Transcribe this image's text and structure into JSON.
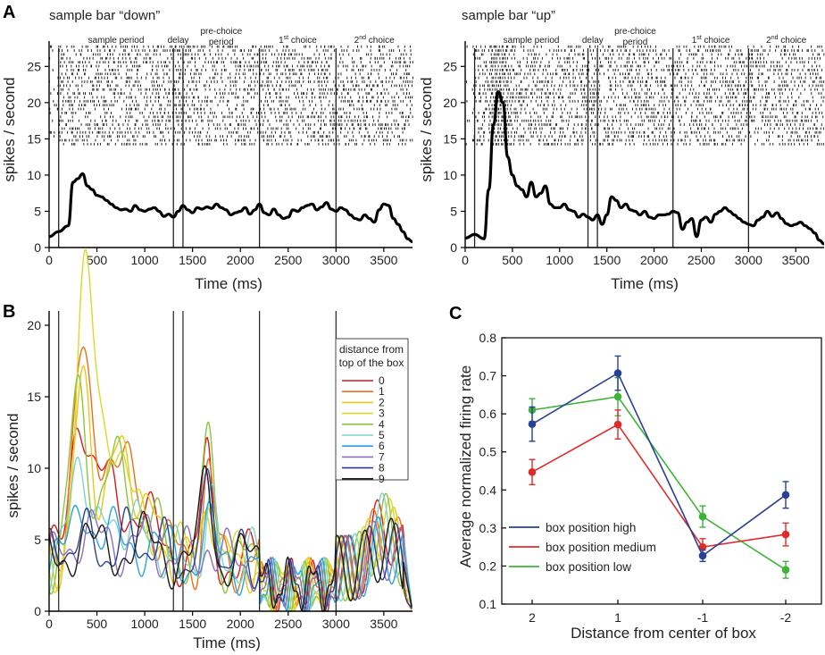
{
  "chart_data": [
    {
      "id": "A-left",
      "panel": "A",
      "type": "line",
      "title": "sample bar “down”",
      "xlabel": "Time (ms)",
      "ylabel": "spikes / second",
      "xlim": [
        0,
        3800
      ],
      "ylim": [
        0,
        28
      ],
      "xticks": [
        "0",
        "500",
        "1000",
        "1500",
        "2000",
        "2500",
        "3000",
        "3500"
      ],
      "xtick_values": [
        0,
        500,
        1000,
        1500,
        2000,
        2500,
        3000,
        3500
      ],
      "yticks": [
        "0",
        "5",
        "10",
        "15",
        "20",
        "25"
      ],
      "ytick_values": [
        0,
        5,
        10,
        15,
        20,
        25
      ],
      "epoch_lines": [
        100,
        1300,
        1400,
        2200,
        3000
      ],
      "epoch_labels": [
        {
          "text": "sample period",
          "t": 700,
          "lines": [
            "sample period"
          ]
        },
        {
          "text": "delay",
          "t": 1350,
          "lines": [
            "delay"
          ]
        },
        {
          "text": "pre-choice period",
          "t": 1800,
          "lines": [
            "pre-choice",
            "period"
          ]
        },
        {
          "text": "1st choice",
          "t": 2600,
          "base": "1",
          "sup": "st",
          "rest": " choice"
        },
        {
          "text": "2nd choice",
          "t": 3400,
          "base": "2",
          "sup": "nd",
          "rest": " choice"
        }
      ],
      "raster": {
        "y_range": [
          14,
          28
        ],
        "t_range": [
          0,
          3800
        ],
        "density": "dense"
      },
      "x": [
        0,
        100,
        200,
        250,
        300,
        350,
        400,
        450,
        500,
        550,
        600,
        650,
        700,
        750,
        800,
        850,
        900,
        950,
        1000,
        1050,
        1100,
        1150,
        1200,
        1250,
        1300,
        1350,
        1400,
        1450,
        1500,
        1550,
        1600,
        1650,
        1700,
        1750,
        1800,
        1850,
        1900,
        1950,
        2000,
        2050,
        2100,
        2150,
        2200,
        2250,
        2300,
        2350,
        2400,
        2450,
        2500,
        2550,
        2600,
        2650,
        2700,
        2750,
        2800,
        2850,
        2900,
        2950,
        3000,
        3050,
        3100,
        3150,
        3200,
        3250,
        3300,
        3350,
        3400,
        3450,
        3500,
        3550,
        3600,
        3650,
        3700,
        3750,
        3800
      ],
      "series": [
        {
          "name": "firing rate",
          "color": "#000000",
          "values": [
            1.5,
            2.2,
            3.0,
            9.0,
            9.5,
            10.2,
            8.5,
            8.0,
            7.2,
            7.0,
            6.5,
            6.0,
            5.5,
            5.2,
            5.3,
            5.0,
            5.8,
            5.2,
            5.0,
            5.3,
            5.5,
            5.0,
            4.3,
            4.6,
            4.2,
            5.0,
            5.8,
            5.2,
            4.8,
            5.5,
            5.3,
            5.6,
            5.4,
            6.0,
            5.5,
            5.2,
            4.5,
            4.8,
            5.0,
            5.5,
            4.6,
            5.2,
            6.0,
            4.8,
            4.5,
            5.3,
            4.5,
            4.0,
            4.2,
            5.2,
            5.0,
            5.5,
            5.8,
            6.0,
            5.2,
            5.6,
            6.2,
            5.3,
            5.0,
            5.5,
            5.2,
            4.5,
            4.0,
            3.8,
            4.5,
            4.0,
            3.5,
            5.2,
            6.0,
            5.8,
            4.0,
            3.2,
            2.2,
            1.2,
            0.8
          ]
        }
      ]
    },
    {
      "id": "A-right",
      "panel": "A",
      "type": "line",
      "title": "sample bar “up”",
      "xlabel": "Time (ms)",
      "ylabel": "spikes / second",
      "xlim": [
        0,
        3800
      ],
      "ylim": [
        0,
        28
      ],
      "xticks": [
        "0",
        "500",
        "1000",
        "1500",
        "2000",
        "2500",
        "3000",
        "3500"
      ],
      "xtick_values": [
        0,
        500,
        1000,
        1500,
        2000,
        2500,
        3000,
        3500
      ],
      "yticks": [
        "0",
        "5",
        "10",
        "15",
        "20",
        "25"
      ],
      "ytick_values": [
        0,
        5,
        10,
        15,
        20,
        25
      ],
      "epoch_lines": [
        100,
        1300,
        1400,
        2200,
        3000
      ],
      "epoch_labels": [
        {
          "text": "sample period",
          "t": 700,
          "lines": [
            "sample period"
          ]
        },
        {
          "text": "delay",
          "t": 1350,
          "lines": [
            "delay"
          ]
        },
        {
          "text": "pre-choice period",
          "t": 1800,
          "lines": [
            "pre-choice",
            "period"
          ]
        },
        {
          "text": "1st choice",
          "t": 2600,
          "base": "1",
          "sup": "st",
          "rest": " choice"
        },
        {
          "text": "2nd choice",
          "t": 3400,
          "base": "2",
          "sup": "nd",
          "rest": " choice"
        }
      ],
      "raster": {
        "y_range": [
          14,
          28
        ],
        "t_range": [
          0,
          3800
        ],
        "density": "dense",
        "burst": [
          250,
          450
        ]
      },
      "x": [
        0,
        100,
        200,
        250,
        300,
        350,
        400,
        450,
        500,
        550,
        600,
        650,
        700,
        750,
        800,
        850,
        900,
        950,
        1000,
        1050,
        1100,
        1150,
        1200,
        1250,
        1300,
        1350,
        1400,
        1450,
        1500,
        1550,
        1600,
        1650,
        1700,
        1750,
        1800,
        1850,
        1900,
        1950,
        2000,
        2050,
        2100,
        2150,
        2200,
        2250,
        2300,
        2350,
        2400,
        2450,
        2500,
        2550,
        2600,
        2650,
        2700,
        2750,
        2800,
        2850,
        2900,
        2950,
        3000,
        3050,
        3100,
        3150,
        3200,
        3250,
        3300,
        3350,
        3400,
        3450,
        3500,
        3550,
        3600,
        3650,
        3700,
        3750,
        3800
      ],
      "series": [
        {
          "name": "firing rate",
          "color": "#000000",
          "values": [
            1.3,
            1.8,
            1.2,
            8.0,
            17.0,
            21.5,
            20.0,
            12.5,
            10.0,
            8.5,
            8.0,
            7.0,
            9.0,
            7.0,
            7.5,
            8.5,
            6.0,
            5.5,
            5.5,
            6.0,
            5.2,
            5.0,
            4.2,
            4.6,
            4.2,
            3.8,
            4.5,
            3.2,
            4.5,
            7.0,
            6.5,
            5.5,
            6.0,
            5.2,
            5.0,
            4.5,
            5.0,
            4.2,
            4.0,
            4.5,
            4.5,
            4.6,
            5.0,
            4.8,
            2.5,
            3.5,
            4.0,
            1.5,
            3.8,
            4.2,
            3.5,
            4.6,
            5.0,
            5.5,
            5.0,
            4.5,
            4.0,
            3.5,
            3.2,
            3.0,
            3.8,
            4.2,
            5.0,
            4.3,
            4.8,
            4.0,
            3.3,
            3.0,
            3.2,
            3.5,
            3.0,
            2.6,
            2.0,
            1.0,
            0.5
          ]
        }
      ]
    },
    {
      "id": "B",
      "panel": "B",
      "type": "line",
      "xlabel": "Time (ms)",
      "ylabel": "spikes / second",
      "xlim": [
        0,
        3800
      ],
      "ylim": [
        0,
        21
      ],
      "xticks": [
        "0",
        "500",
        "1000",
        "1500",
        "2000",
        "2500",
        "3000",
        "3500"
      ],
      "xtick_values": [
        0,
        500,
        1000,
        1500,
        2000,
        2500,
        3000,
        3500
      ],
      "yticks": [
        "0",
        "5",
        "10",
        "15",
        "20"
      ],
      "ytick_values": [
        0,
        5,
        10,
        15,
        20
      ],
      "epoch_lines": [
        100,
        1300,
        1400,
        2200,
        3000
      ],
      "legend": {
        "title_lines": [
          "distance from",
          "top of the box"
        ],
        "placement": "right"
      },
      "series": [
        {
          "name": "0",
          "color": "#d7191c",
          "peak": 13.8,
          "late": 10.8
        },
        {
          "name": "1",
          "color": "#e8701d",
          "peak": 17.8,
          "late": 10.2
        },
        {
          "name": "2",
          "color": "#f0c419",
          "peak": 15.6,
          "late": 9.6
        },
        {
          "name": "3",
          "color": "#d6d92a",
          "peak": 20.2,
          "late": 9.4
        },
        {
          "name": "4",
          "color": "#8dc53e",
          "peak": 14.8,
          "late": 13.5
        },
        {
          "name": "5",
          "color": "#7fd3c8",
          "peak": 11.5,
          "late": 7.6
        },
        {
          "name": "6",
          "color": "#28a4dc",
          "peak": 7.8,
          "late": 6.4
        },
        {
          "name": "7",
          "color": "#8a6fbd",
          "peak": 6.6,
          "late": 5.6
        },
        {
          "name": "8",
          "color": "#2e3f8f",
          "peak": 6.3,
          "late": 9.8
        },
        {
          "name": "9",
          "color": "#1a1a1a",
          "peak": 5.6,
          "late": 10.2
        }
      ]
    },
    {
      "id": "C",
      "panel": "C",
      "type": "line",
      "xlabel": "Distance from center of box",
      "ylabel": "Average normalized firing rate",
      "categories": [
        "2",
        "1",
        "-1",
        "-2"
      ],
      "ylim": [
        0.1,
        0.8
      ],
      "yticks": [
        "0.1",
        "0.2",
        "0.3",
        "0.4",
        "0.5",
        "0.6",
        "0.7",
        "0.8"
      ],
      "ytick_values": [
        0.1,
        0.2,
        0.3,
        0.4,
        0.5,
        0.6,
        0.7,
        0.8
      ],
      "legend": {
        "placement": "bottom-left"
      },
      "series": [
        {
          "name": "box position high",
          "color": "#2a3f96",
          "values": [
            0.573,
            0.707,
            0.227,
            0.387
          ],
          "err": [
            0.045,
            0.045,
            0.015,
            0.035
          ]
        },
        {
          "name": "box position medium",
          "color": "#e02b2b",
          "values": [
            0.447,
            0.572,
            0.25,
            0.283
          ],
          "err": [
            0.033,
            0.038,
            0.022,
            0.03
          ]
        },
        {
          "name": "box position low",
          "color": "#3db33a",
          "values": [
            0.61,
            0.645,
            0.33,
            0.19
          ],
          "err": [
            0.03,
            0.05,
            0.028,
            0.022
          ]
        }
      ]
    }
  ]
}
